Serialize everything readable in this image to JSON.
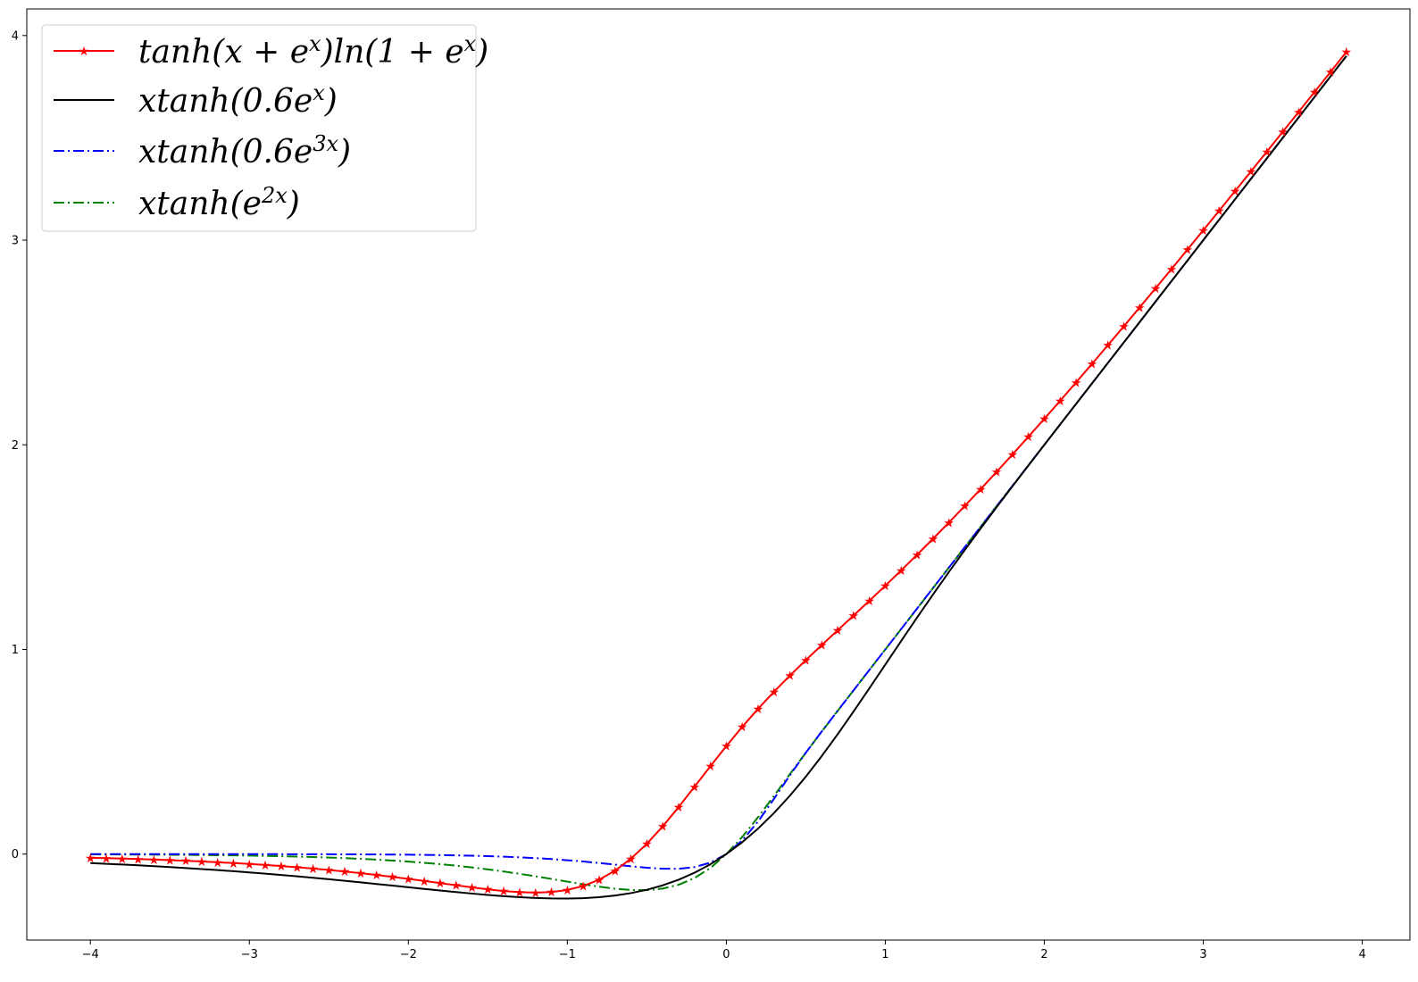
{
  "chart_data": {
    "type": "line",
    "title": "",
    "xlabel": "",
    "ylabel": "",
    "xlim": [
      -4.4,
      4.3
    ],
    "ylim": [
      -0.42,
      4.13
    ],
    "xticks": [
      -4,
      -3,
      -2,
      -1,
      0,
      1,
      2,
      3,
      4
    ],
    "yticks": [
      0,
      1,
      2,
      3,
      4
    ],
    "xtick_labels": [
      "−4",
      "−3",
      "−2",
      "−1",
      "0",
      "1",
      "2",
      "3",
      "4"
    ],
    "ytick_labels": [
      "0",
      "1",
      "2",
      "3",
      "4"
    ],
    "grid": false,
    "legend_position": "upper-left",
    "x_range": [
      -4,
      3.9
    ],
    "x_step": 0.1,
    "series": [
      {
        "name": "tanh(x+e^x)ln(1+e^x)",
        "legend_label": "tanh(x + e^x)ln(1 + e^x)",
        "color": "#ff0000",
        "style": "solid",
        "marker": "star",
        "formula": "tanh(x+exp(x))*ln(1+exp(x))"
      },
      {
        "name": "xtanh(0.6e^x)",
        "legend_label": "xtanh(0.6e^x)",
        "color": "#000000",
        "style": "solid",
        "marker": "none",
        "formula": "x*tanh(0.6*exp(x))"
      },
      {
        "name": "xtanh(0.6e^{3x})",
        "legend_label": "xtanh(0.6e^3x)",
        "color": "#0000ff",
        "style": "dashdot",
        "marker": "none",
        "formula": "x*tanh(0.6*exp(3x))"
      },
      {
        "name": "xtanh(e^{2x})",
        "legend_label": "xtanh(e^2x)",
        "color": "#008000",
        "style": "dashdot",
        "marker": "none",
        "formula": "x*tanh(exp(2x))"
      }
    ]
  },
  "legend": {
    "items": [
      {
        "base": "tanh(x + e",
        "sup1": "x",
        "mid": ")ln(1 + e",
        "sup2": "x",
        "end": ")"
      },
      {
        "base": "xtanh(0.6e",
        "sup1": "x",
        "end": ")"
      },
      {
        "base": "xtanh(0.6e",
        "sup1": "3x",
        "end": ")"
      },
      {
        "base": "xtanh(e",
        "sup1": "2x",
        "end": ")"
      }
    ]
  }
}
